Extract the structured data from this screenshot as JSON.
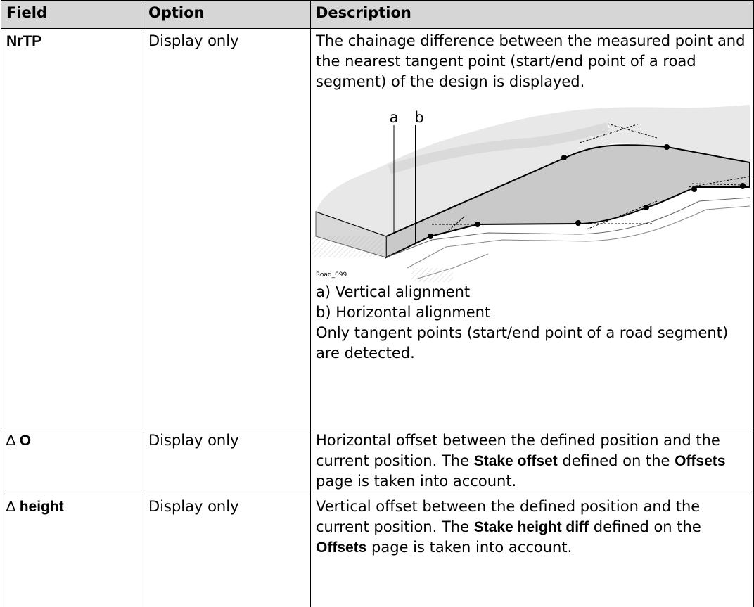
{
  "table": {
    "header": [
      "Field",
      "Option",
      "Description"
    ],
    "rows": [
      {
        "field": [
          "NrTP"
        ],
        "option": "Display only",
        "description": {
          "intro": "The chainage difference between the measured point and the nearest tangent point (start/end point of a road segment) of the design is displayed.",
          "figure": {
            "labels": [
              "a",
              "b"
            ],
            "caption": "Road_099"
          },
          "items": [
            "a) Vertical alignment",
            "b) Horizontal alignment"
          ],
          "note": "Only tangent points (start/end point of a road segment) are detected."
        }
      },
      {
        "field": [
          "∆",
          "O"
        ],
        "option": "Display only",
        "description": [
          "Horizontal offset between the defined position and the current position. The ",
          "Stake offset",
          " defined on the ",
          "Offsets",
          " page is taken into account."
        ]
      },
      {
        "field": [
          "∆",
          "height"
        ],
        "option": "Display only",
        "description": [
          "Vertical offset between the defined position and the current position. The ",
          "Stake height diff",
          " defined on the ",
          "Offsets",
          " page is taken into account."
        ]
      }
    ]
  }
}
